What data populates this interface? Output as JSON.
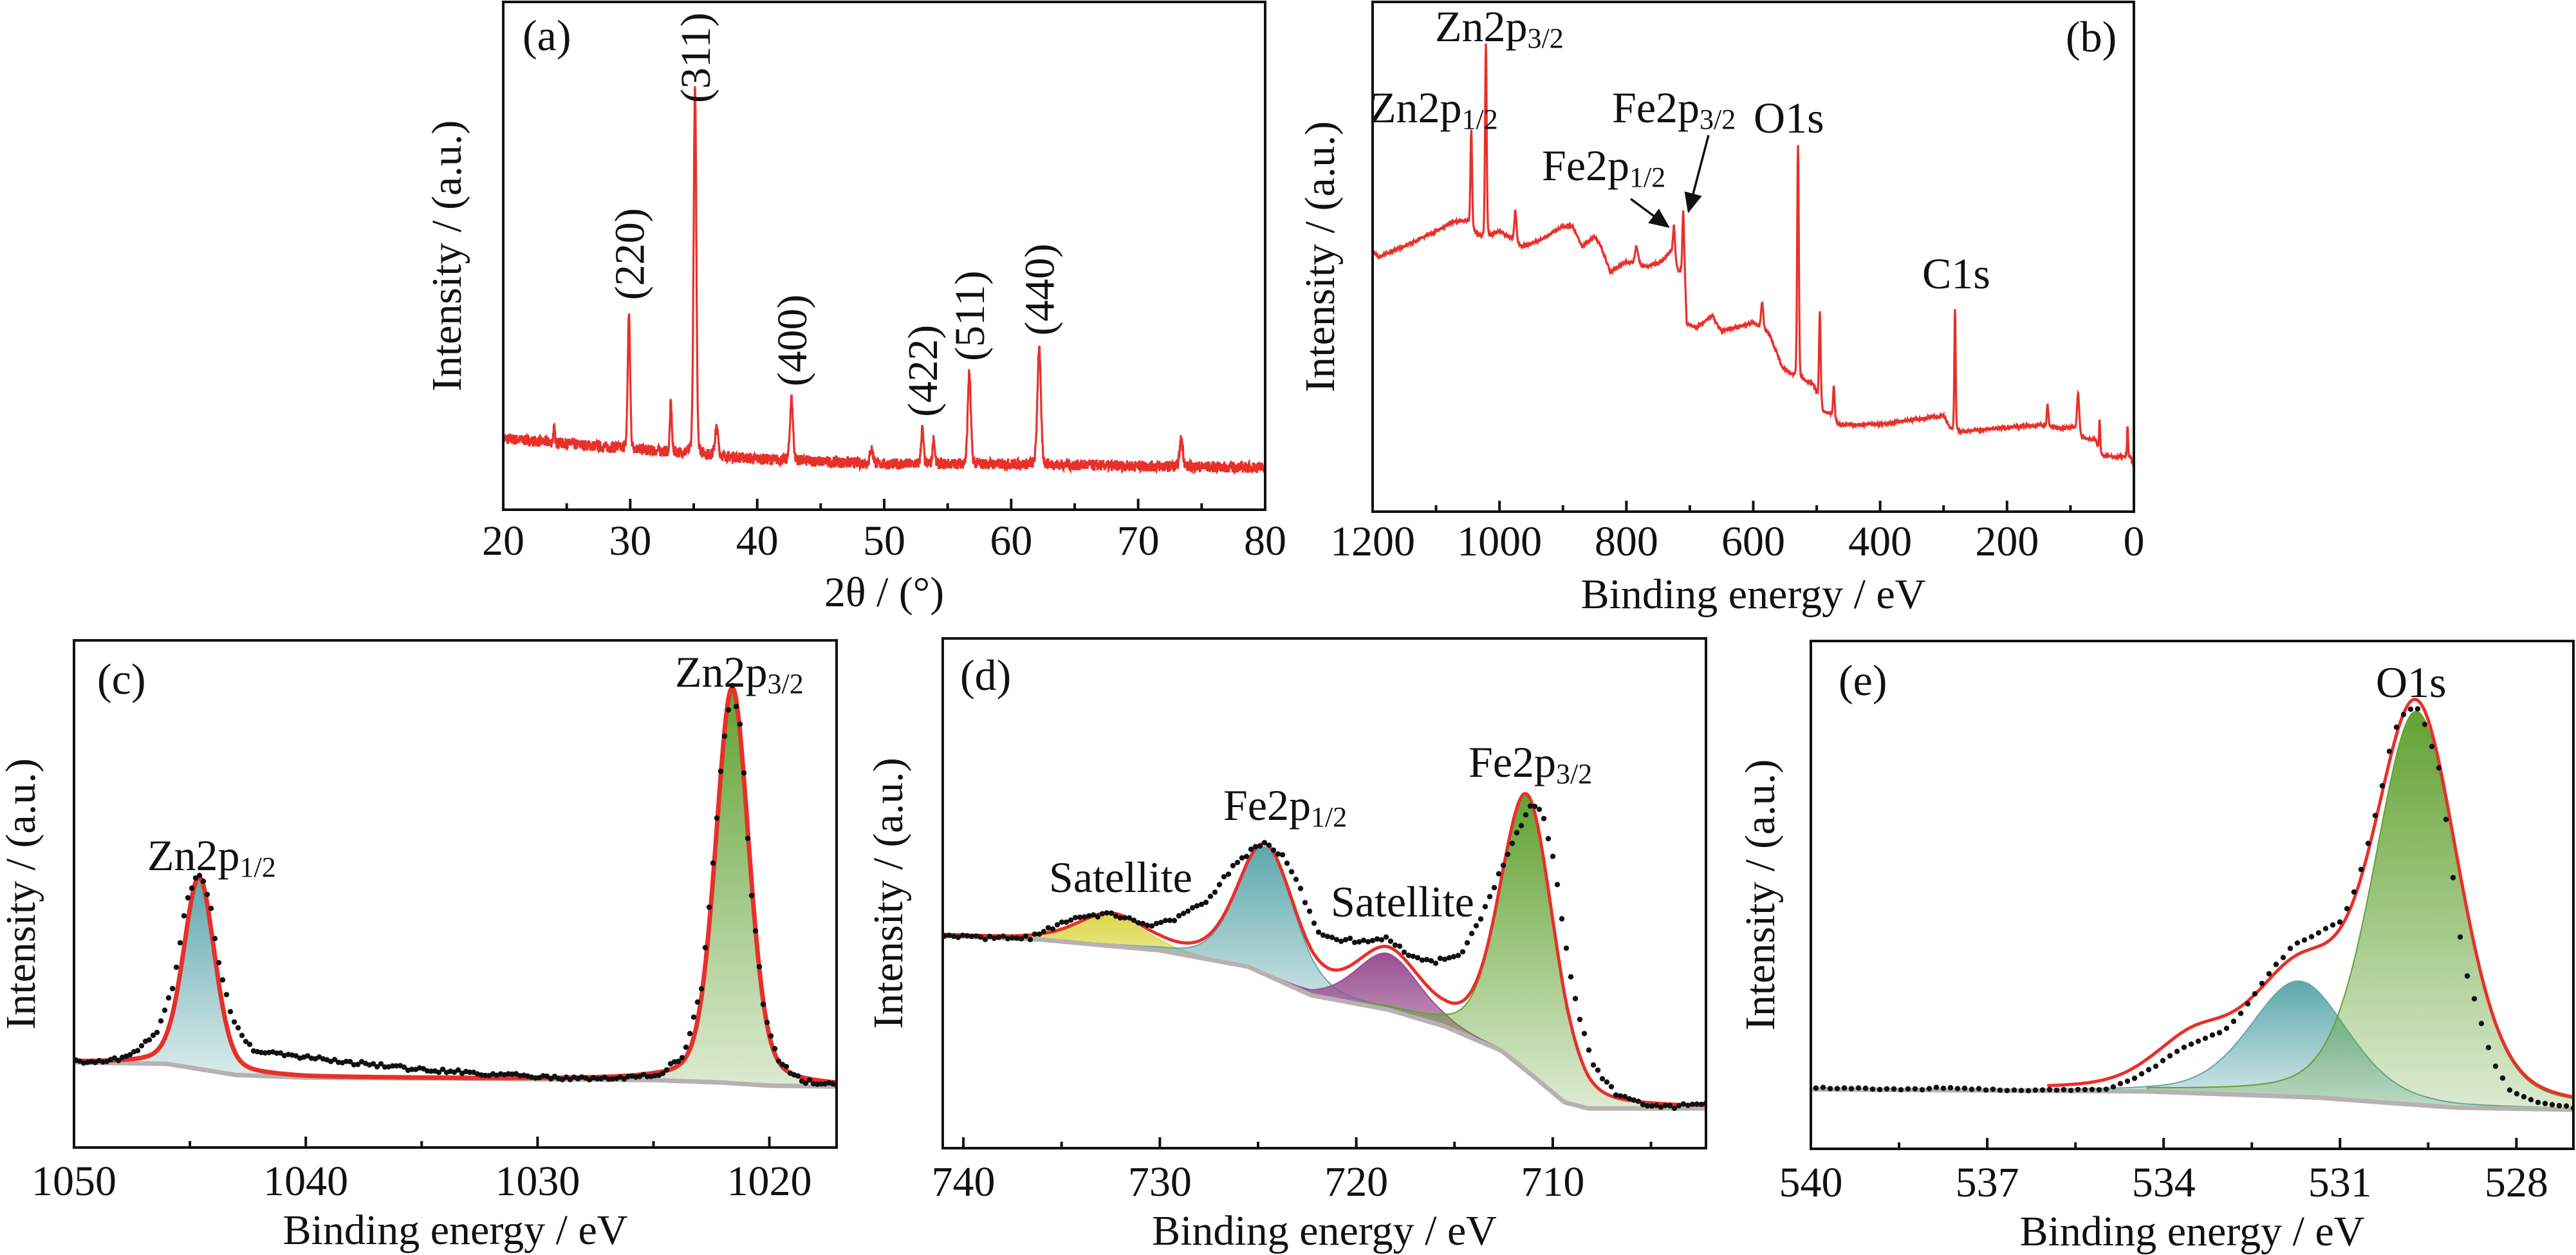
{
  "chart_data": [
    {
      "panel_label": "(a)",
      "type": "line",
      "xlabel": "2θ / (°)",
      "ylabel": "Intensity / (a.u.)",
      "xlim": [
        20,
        80
      ],
      "ylim": [
        0,
        1
      ],
      "xticks": [
        20,
        30,
        40,
        50,
        60,
        70,
        80
      ],
      "minor_ticks": [
        25,
        35,
        45,
        55,
        65,
        75
      ],
      "line_color": "#e8302a",
      "baseline": [
        [
          20,
          0.14
        ],
        [
          25,
          0.13
        ],
        [
          30,
          0.12
        ],
        [
          40,
          0.1
        ],
        [
          50,
          0.09
        ],
        [
          60,
          0.09
        ],
        [
          70,
          0.086
        ],
        [
          80,
          0.083
        ]
      ],
      "peaks": [
        {
          "x": 24.0,
          "y": 0.16,
          "fwhm": 0.15
        },
        {
          "x": 29.9,
          "y": 0.39,
          "fwhm": 0.22
        },
        {
          "x": 33.2,
          "y": 0.21,
          "fwhm": 0.18
        },
        {
          "x": 35.1,
          "y": 0.83,
          "fwhm": 0.25
        },
        {
          "x": 36.8,
          "y": 0.16,
          "fwhm": 0.3
        },
        {
          "x": 42.7,
          "y": 0.22,
          "fwhm": 0.28
        },
        {
          "x": 49.0,
          "y": 0.12,
          "fwhm": 0.3
        },
        {
          "x": 53.0,
          "y": 0.16,
          "fwhm": 0.22
        },
        {
          "x": 53.9,
          "y": 0.14,
          "fwhm": 0.2
        },
        {
          "x": 56.7,
          "y": 0.27,
          "fwhm": 0.28
        },
        {
          "x": 62.2,
          "y": 0.32,
          "fwhm": 0.32
        },
        {
          "x": 73.4,
          "y": 0.14,
          "fwhm": 0.3
        }
      ],
      "annotations": [
        {
          "text": "(220)",
          "x": 29.9,
          "y": 0.39
        },
        {
          "text": "(311)",
          "x": 35.1,
          "y": 0.83
        },
        {
          "text": "(400)",
          "x": 42.7,
          "y": 0.22
        },
        {
          "text": "(422)",
          "x": 53.0,
          "y": 0.16
        },
        {
          "text": "(511)",
          "x": 56.7,
          "y": 0.27
        },
        {
          "text": "(440)",
          "x": 62.2,
          "y": 0.32
        }
      ]
    },
    {
      "panel_label": "(b)",
      "type": "line",
      "xlabel": "Binding energy / eV",
      "ylabel": "Intensity / (a.u.)",
      "xlim": [
        1200,
        0
      ],
      "ylim": [
        0,
        1
      ],
      "xticks": [
        1200,
        1000,
        800,
        600,
        400,
        200,
        0
      ],
      "minor_ticks": [
        1100,
        900,
        700,
        500,
        300,
        100
      ],
      "line_color": "#e8302a",
      "baseline": [
        [
          1200,
          0.51
        ],
        [
          1190,
          0.5
        ],
        [
          1150,
          0.52
        ],
        [
          1100,
          0.55
        ],
        [
          1070,
          0.57
        ],
        [
          1050,
          0.57
        ],
        [
          1040,
          0.55
        ],
        [
          1030,
          0.54
        ],
        [
          1015,
          0.54
        ],
        [
          1000,
          0.55
        ],
        [
          985,
          0.54
        ],
        [
          965,
          0.52
        ],
        [
          940,
          0.53
        ],
        [
          900,
          0.56
        ],
        [
          885,
          0.56
        ],
        [
          870,
          0.52
        ],
        [
          850,
          0.54
        ],
        [
          840,
          0.52
        ],
        [
          825,
          0.47
        ],
        [
          800,
          0.49
        ],
        [
          770,
          0.48
        ],
        [
          745,
          0.49
        ],
        [
          730,
          0.51
        ],
        [
          718,
          0.47
        ],
        [
          708,
          0.47
        ],
        [
          705,
          0.37
        ],
        [
          690,
          0.36
        ],
        [
          665,
          0.385
        ],
        [
          650,
          0.354
        ],
        [
          600,
          0.37
        ],
        [
          575,
          0.35
        ],
        [
          555,
          0.285
        ],
        [
          540,
          0.27
        ],
        [
          525,
          0.26
        ],
        [
          505,
          0.25
        ],
        [
          490,
          0.196
        ],
        [
          478,
          0.19
        ],
        [
          465,
          0.17
        ],
        [
          400,
          0.172
        ],
        [
          300,
          0.188
        ],
        [
          288,
          0.16
        ],
        [
          275,
          0.157
        ],
        [
          150,
          0.17
        ],
        [
          130,
          0.165
        ],
        [
          95,
          0.165
        ],
        [
          80,
          0.145
        ],
        [
          60,
          0.14
        ],
        [
          50,
          0.11
        ],
        [
          25,
          0.108
        ],
        [
          5,
          0.107
        ],
        [
          0,
          0.087
        ]
      ],
      "peaks": [
        {
          "x": 1044.5,
          "y": 0.75,
          "fwhm": 3
        },
        {
          "x": 1021.5,
          "y": 0.92,
          "fwhm": 3
        },
        {
          "x": 975,
          "y": 0.59,
          "fwhm": 4
        },
        {
          "x": 784,
          "y": 0.52,
          "fwhm": 6
        },
        {
          "x": 725,
          "y": 0.56,
          "fwhm": 4
        },
        {
          "x": 710.5,
          "y": 0.59,
          "fwhm": 3
        },
        {
          "x": 586,
          "y": 0.41,
          "fwhm": 4
        },
        {
          "x": 529.5,
          "y": 0.72,
          "fwhm": 3
        },
        {
          "x": 495,
          "y": 0.39,
          "fwhm": 3
        },
        {
          "x": 473,
          "y": 0.246,
          "fwhm": 3
        },
        {
          "x": 282,
          "y": 0.4,
          "fwhm": 2.5
        },
        {
          "x": 136,
          "y": 0.21,
          "fwhm": 3
        },
        {
          "x": 88,
          "y": 0.234,
          "fwhm": 4
        },
        {
          "x": 54,
          "y": 0.18,
          "fwhm": 2
        },
        {
          "x": 10,
          "y": 0.17,
          "fwhm": 2
        }
      ],
      "annotations": [
        {
          "text": "Zn2p",
          "sub": "3/2"
        },
        {
          "text": "Zn2p",
          "sub": "1/2"
        },
        {
          "text": "Fe2p",
          "sub": "3/2"
        },
        {
          "text": "O1s",
          "sub": ""
        },
        {
          "text": "Fe2p",
          "sub": "1/2"
        },
        {
          "text": "C1s",
          "sub": ""
        }
      ]
    },
    {
      "panel_label": "(c)",
      "type": "area",
      "xlabel": "Binding energy / eV",
      "ylabel": "Intensity / (a.u.)",
      "xlim": [
        1050,
        1017.1
      ],
      "ylim": [
        0,
        1
      ],
      "xticks": [
        1050,
        1040,
        1030,
        1020
      ],
      "minor_ticks": [
        1045,
        1035,
        1025
      ],
      "envelope_color": "#e8302a",
      "background_color": "#b9b0b2",
      "background": [
        [
          1050,
          0.168
        ],
        [
          1046,
          0.165
        ],
        [
          1043,
          0.143
        ],
        [
          1040,
          0.138
        ],
        [
          1025,
          0.133
        ],
        [
          1022,
          0.128
        ],
        [
          1020,
          0.122
        ],
        [
          1017,
          0.12
        ]
      ],
      "components": [
        {
          "center": 1044.6,
          "amp": 0.378,
          "fwhm": 1.6,
          "color": "#5ea8ad",
          "fill": true
        },
        {
          "center": 1021.6,
          "amp": 0.78,
          "fwhm": 1.7,
          "color": "#62a232",
          "fill": true
        }
      ],
      "data": [
        [
          1050,
          0.169
        ],
        [
          1047.8,
          0.175
        ],
        [
          1046.4,
          0.226
        ],
        [
          1045.7,
          0.321
        ],
        [
          1045.2,
          0.473
        ],
        [
          1044.8,
          0.53
        ],
        [
          1044.5,
          0.543
        ],
        [
          1044.1,
          0.473
        ],
        [
          1043.7,
          0.346
        ],
        [
          1043.1,
          0.245
        ],
        [
          1042.3,
          0.194
        ],
        [
          1041,
          0.184
        ],
        [
          1038.3,
          0.169
        ],
        [
          1035.6,
          0.156
        ],
        [
          1031.5,
          0.143
        ],
        [
          1027.5,
          0.135
        ],
        [
          1024.8,
          0.143
        ],
        [
          1023.7,
          0.181
        ],
        [
          1022.9,
          0.321
        ],
        [
          1022.4,
          0.575
        ],
        [
          1022.0,
          0.791
        ],
        [
          1021.6,
          0.911
        ],
        [
          1021.2,
          0.816
        ],
        [
          1020.8,
          0.511
        ],
        [
          1020.2,
          0.258
        ],
        [
          1019.6,
          0.169
        ],
        [
          1018.6,
          0.131
        ],
        [
          1017.3,
          0.124
        ]
      ],
      "annotations": [
        {
          "text": "Zn2p",
          "sub": "1/2"
        },
        {
          "text": "Zn2p",
          "sub": "3/2"
        }
      ]
    },
    {
      "panel_label": "(d)",
      "type": "area",
      "xlabel": "Binding energy / eV",
      "ylabel": "Intensity / (a.u.)",
      "xlim": [
        741.05,
        702.2
      ],
      "ylim": [
        0,
        1
      ],
      "xticks": [
        740,
        730,
        720,
        710
      ],
      "minor_ticks": [
        735,
        725,
        715,
        705
      ],
      "envelope_color": "#e8302a",
      "background_color": "#b9b0b2",
      "background": [
        [
          741,
          0.417
        ],
        [
          736,
          0.409
        ],
        [
          730,
          0.388
        ],
        [
          725.5,
          0.356
        ],
        [
          722.3,
          0.3
        ],
        [
          718.4,
          0.272
        ],
        [
          715.5,
          0.239
        ],
        [
          712.6,
          0.191
        ],
        [
          710.8,
          0.135
        ],
        [
          709.4,
          0.09
        ],
        [
          708.2,
          0.078
        ],
        [
          702.1,
          0.078
        ]
      ],
      "components": [
        {
          "center": 732.5,
          "amp": 0.06,
          "fwhm": 4.0,
          "color": "#dcd74a",
          "fill": true
        },
        {
          "center": 724.6,
          "amp": 0.25,
          "fwhm": 3.4,
          "color": "#5ea8ad",
          "fill": true
        },
        {
          "center": 718.4,
          "amp": 0.11,
          "fwhm": 3.8,
          "color": "#9a4f91",
          "fill": true
        },
        {
          "center": 711.3,
          "amp": 0.54,
          "fwhm": 3.2,
          "color": "#62a232",
          "fill": true
        }
      ],
      "data": [
        [
          741,
          0.417
        ],
        [
          739,
          0.413
        ],
        [
          736.6,
          0.413
        ],
        [
          735.5,
          0.433
        ],
        [
          734,
          0.453
        ],
        [
          732.5,
          0.461
        ],
        [
          731.3,
          0.445
        ],
        [
          730.2,
          0.437
        ],
        [
          729,
          0.453
        ],
        [
          727.5,
          0.489
        ],
        [
          726.4,
          0.546
        ],
        [
          725.2,
          0.59
        ],
        [
          724.6,
          0.602
        ],
        [
          723.7,
          0.57
        ],
        [
          722.8,
          0.505
        ],
        [
          722,
          0.425
        ],
        [
          720.8,
          0.409
        ],
        [
          719.4,
          0.405
        ],
        [
          718.4,
          0.413
        ],
        [
          717.3,
          0.38
        ],
        [
          716.1,
          0.364
        ],
        [
          714.6,
          0.384
        ],
        [
          713.8,
          0.441
        ],
        [
          712.9,
          0.521
        ],
        [
          712,
          0.602
        ],
        [
          711.1,
          0.674
        ],
        [
          710.5,
          0.658
        ],
        [
          709.9,
          0.553
        ],
        [
          709.4,
          0.409
        ],
        [
          708.8,
          0.28
        ],
        [
          707.9,
          0.159
        ],
        [
          706.7,
          0.102
        ],
        [
          705.3,
          0.086
        ],
        [
          703.8,
          0.082
        ],
        [
          702.1,
          0.09
        ]
      ],
      "annotations": [
        {
          "text": "Satellite",
          "sub": ""
        },
        {
          "text": "Fe2p",
          "sub": "1/2"
        },
        {
          "text": "Satellite",
          "sub": ""
        },
        {
          "text": "Fe2p",
          "sub": "3/2"
        }
      ]
    },
    {
      "panel_label": "(e)",
      "type": "area",
      "xlabel": "Binding energy / eV",
      "ylabel": "Intensity / (a.u.)",
      "xlim": [
        540,
        527.03
      ],
      "ylim": [
        0,
        1
      ],
      "xticks": [
        540,
        537,
        534,
        531,
        528
      ],
      "minor_ticks": [
        538.5,
        535.5,
        532.5,
        529.5
      ],
      "envelope_color": "#e8302a",
      "background_color": "#b9b0b2",
      "envelope_start": 536,
      "background": [
        [
          540,
          0.117
        ],
        [
          534.3,
          0.113
        ],
        [
          531.4,
          0.101
        ],
        [
          530,
          0.089
        ],
        [
          529,
          0.081
        ],
        [
          527,
          0.077
        ]
      ],
      "components": [
        {
          "center": 533.5,
          "amp": 0.09,
          "fwhm": 1.6,
          "color": "#e8302a",
          "fill": false
        },
        {
          "center": 531.7,
          "amp": 0.228,
          "fwhm": 1.95,
          "color": "#5ea8ad",
          "fill": true
        },
        {
          "center": 529.7,
          "amp": 0.775,
          "fwhm": 1.7,
          "color": "#62a232",
          "fill": true
        }
      ],
      "data": [
        [
          540,
          0.12
        ],
        [
          538.1,
          0.117
        ],
        [
          537.8,
          0.121
        ],
        [
          536.7,
          0.115
        ],
        [
          535.8,
          0.115
        ],
        [
          535,
          0.117
        ],
        [
          534.6,
          0.133
        ],
        [
          534.1,
          0.166
        ],
        [
          533.7,
          0.198
        ],
        [
          533.3,
          0.218
        ],
        [
          532.95,
          0.234
        ],
        [
          532.6,
          0.279
        ],
        [
          532.2,
          0.347
        ],
        [
          531.8,
          0.4
        ],
        [
          531.4,
          0.424
        ],
        [
          531.0,
          0.448
        ],
        [
          530.8,
          0.493
        ],
        [
          530.6,
          0.565
        ],
        [
          530.3,
          0.703
        ],
        [
          530.1,
          0.816
        ],
        [
          529.9,
          0.86
        ],
        [
          529.7,
          0.871
        ],
        [
          529.6,
          0.852
        ],
        [
          529.3,
          0.743
        ],
        [
          529.1,
          0.557
        ],
        [
          528.9,
          0.364
        ],
        [
          528.6,
          0.25
        ],
        [
          528.4,
          0.17
        ],
        [
          528.1,
          0.113
        ],
        [
          527.7,
          0.093
        ],
        [
          527.0,
          0.081
        ]
      ],
      "annotations": [
        {
          "text": "O1s",
          "sub": ""
        }
      ]
    }
  ]
}
